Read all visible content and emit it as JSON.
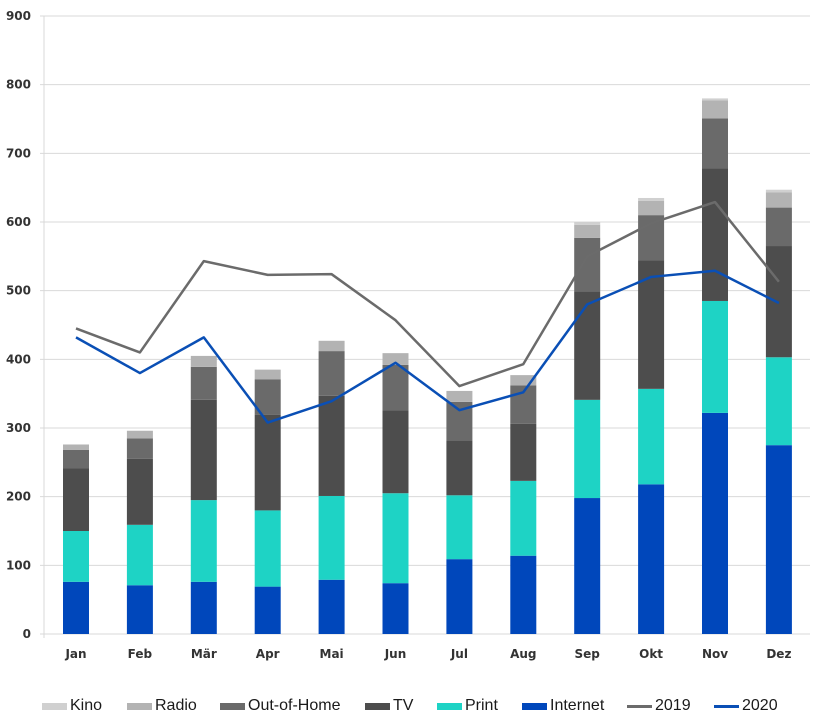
{
  "chart_data": {
    "type": "bar",
    "stacked": true,
    "title": "",
    "xlabel": "",
    "ylabel": "",
    "ylim": [
      0,
      900
    ],
    "yticks": [
      0,
      100,
      200,
      300,
      400,
      500,
      600,
      700,
      800,
      900
    ],
    "grid": true,
    "legend_position": "bottom",
    "categories": [
      "Jan",
      "Feb",
      "Mär",
      "Apr",
      "Mai",
      "Jun",
      "Jul",
      "Aug",
      "Sep",
      "Okt",
      "Nov",
      "Dez"
    ],
    "series": [
      {
        "name": "Internet",
        "kind": "bar",
        "color": "#0047bb",
        "values": [
          76,
          71,
          76,
          69,
          79,
          74,
          109,
          114,
          198,
          218,
          322,
          275
        ]
      },
      {
        "name": "Print",
        "kind": "bar",
        "color": "#1ed3c5",
        "values": [
          74,
          88,
          119,
          111,
          122,
          131,
          93,
          109,
          143,
          139,
          163,
          128
        ]
      },
      {
        "name": "TV",
        "kind": "bar",
        "color": "#4d4d4d",
        "values": [
          91,
          96,
          146,
          139,
          146,
          121,
          80,
          83,
          158,
          187,
          193,
          162
        ]
      },
      {
        "name": "Out-of-Home",
        "kind": "bar",
        "color": "#6a6a6a",
        "values": [
          27,
          30,
          48,
          52,
          65,
          66,
          56,
          56,
          78,
          66,
          73,
          56
        ]
      },
      {
        "name": "Radio",
        "kind": "bar",
        "color": "#b3b3b3",
        "values": [
          8,
          11,
          16,
          14,
          15,
          17,
          16,
          15,
          19,
          21,
          26,
          22
        ]
      },
      {
        "name": "Kino",
        "kind": "bar",
        "color": "#d0d0d0",
        "values": [
          0,
          0,
          0,
          0,
          0,
          0,
          0,
          0,
          4,
          4,
          3,
          4
        ]
      },
      {
        "name": "2019",
        "kind": "line",
        "color": "#6b6b6b",
        "values": [
          445,
          410,
          543,
          523,
          524,
          457,
          361,
          393,
          550,
          598,
          629,
          513
        ]
      },
      {
        "name": "2020",
        "kind": "line",
        "color": "#0a4fb5",
        "values": [
          432,
          380,
          432,
          308,
          339,
          395,
          326,
          352,
          480,
          520,
          529,
          482
        ]
      }
    ],
    "legend": [
      {
        "label": "Kino",
        "type": "box",
        "color": "#d0d0d0"
      },
      {
        "label": "Radio",
        "type": "box",
        "color": "#b3b3b3"
      },
      {
        "label": "Out-of-Home",
        "type": "box",
        "color": "#6a6a6a"
      },
      {
        "label": "TV",
        "type": "box",
        "color": "#4d4d4d"
      },
      {
        "label": "Print",
        "type": "box",
        "color": "#1ed3c5"
      },
      {
        "label": "Internet",
        "type": "box",
        "color": "#0047bb"
      },
      {
        "label": "2019",
        "type": "line",
        "color": "#6b6b6b"
      },
      {
        "label": "2020",
        "type": "line",
        "color": "#0a4fb5"
      }
    ]
  },
  "colors": {
    "grid": "#d9d9d9",
    "axis_text": "#333333"
  }
}
